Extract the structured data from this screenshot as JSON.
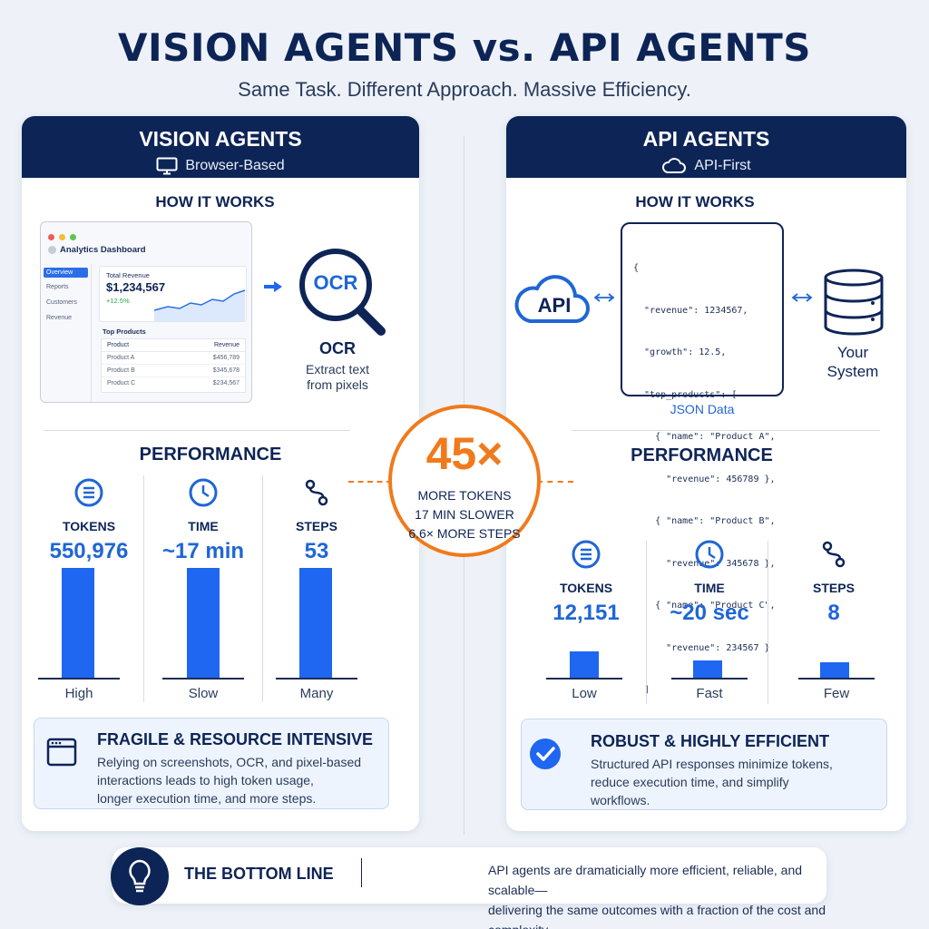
{
  "header": {
    "title": "VISION AGENTS vs. API AGENTS",
    "subtitle": "Same Task. Different Approach. Massive Efficiency."
  },
  "vision": {
    "title": "VISION AGENTS",
    "subtitle": "Browser-Based",
    "how_title": "HOW IT WORKS",
    "dashboard": {
      "title": "Analytics Dashboard",
      "nav": [
        "Overview",
        "Reports",
        "Customers",
        "Revenue"
      ],
      "total_label": "Total Revenue",
      "total_value": "$1,234,567",
      "growth": "+12.5%",
      "top_products_label": "Top Products",
      "table_headers": [
        "Product",
        "Revenue"
      ],
      "rows": [
        [
          "Product A",
          "$456,789"
        ],
        [
          "Product B",
          "$345,678"
        ],
        [
          "Product C",
          "$234,567"
        ]
      ]
    },
    "ocr_badge": "OCR",
    "ocr_title": "OCR",
    "ocr_desc_1": "Extract text",
    "ocr_desc_2": "from pixels",
    "perf_title": "PERFORMANCE",
    "metrics": [
      {
        "label": "TOKENS",
        "value": "550,976",
        "caption": "High",
        "icon": "list-circle-icon",
        "level": 1.0
      },
      {
        "label": "TIME",
        "value": "~17 min",
        "caption": "Slow",
        "icon": "clock-icon",
        "level": 1.0
      },
      {
        "label": "STEPS",
        "value": "53",
        "caption": "Many",
        "icon": "steps-icon",
        "level": 1.0
      }
    ],
    "callout_title": "FRAGILE & RESOURCE INTENSIVE",
    "callout_lines": [
      "Relying on screenshots, OCR, and pixel-based",
      "interactions leads to high token usage,",
      "longer execution time, and more steps."
    ]
  },
  "api": {
    "title": "API AGENTS",
    "subtitle": "API-First",
    "how_title": "HOW IT WORKS",
    "api_label": "API",
    "json_lines": [
      "{",
      "  \"revenue\": 1234567,",
      "  \"growth\": 12.5,",
      "  \"top_products\": [",
      "    { \"name\": \"Product A\",",
      "      \"revenue\": 456789 },",
      "    { \"name\": \"Product B\",",
      "      \"revenue\": 345678 },",
      "    { \"name\": \"Product C\",",
      "      \"revenue\": 234567 }",
      "  ]",
      "}"
    ],
    "json_caption": "JSON Data",
    "system_label_1": "Your",
    "system_label_2": "System",
    "perf_title": "PERFORMANCE",
    "metrics": [
      {
        "label": "TOKENS",
        "value": "12,151",
        "caption": "Low",
        "icon": "list-circle-icon",
        "level": 0.22
      },
      {
        "label": "TIME",
        "value": "~20 sec",
        "caption": "Fast",
        "icon": "clock-icon",
        "level": 0.15
      },
      {
        "label": "STEPS",
        "value": "8",
        "caption": "Few",
        "icon": "steps-icon",
        "level": 0.13
      }
    ],
    "callout_title": "ROBUST & HIGHLY EFFICIENT",
    "callout_lines": [
      "Structured API responses minimize tokens,",
      "reduce execution time, and simplify",
      "workflows."
    ]
  },
  "comparison": {
    "big": "45×",
    "line1": "MORE TOKENS",
    "line2": "17 MIN SLOWER",
    "line3": "6.6× MORE STEPS"
  },
  "bottom": {
    "title": "THE BOTTOM LINE",
    "line1": "API agents are dramaticially more efficient, reliable, and scalable—",
    "line2": "delivering the same outcomes with a fraction of the cost and complexity."
  },
  "colors": {
    "navy": "#0d2456",
    "blue": "#1f66f0",
    "orange": "#f07a1c"
  }
}
